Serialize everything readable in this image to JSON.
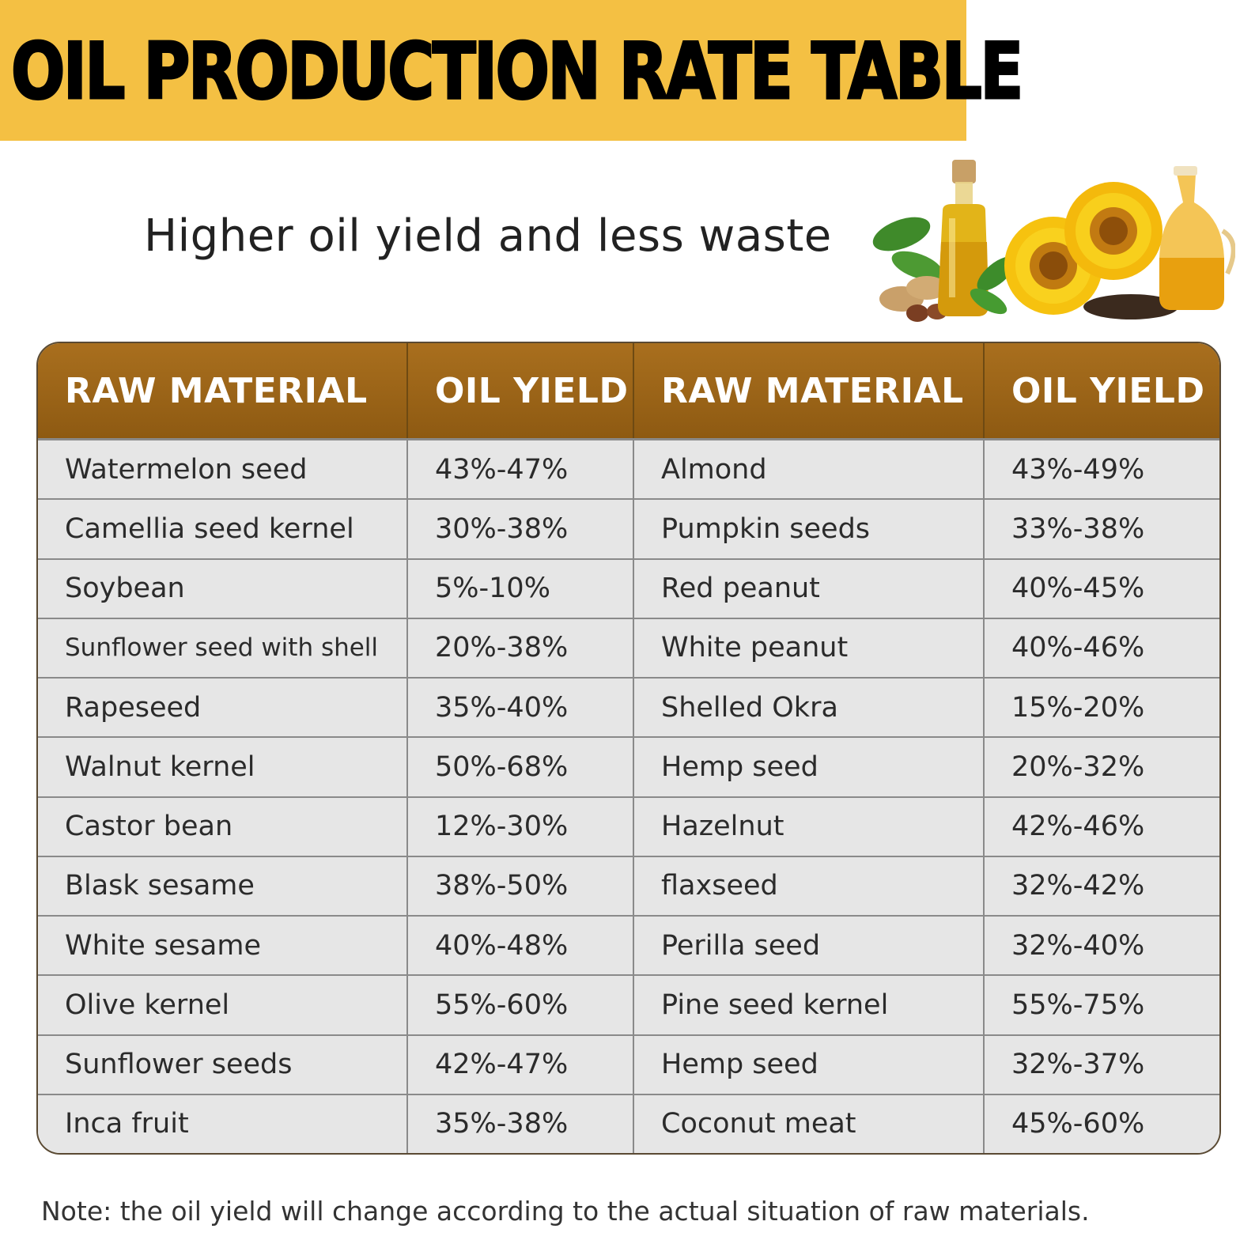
{
  "header": {
    "title": "OIL PRODUCTION RATE TABLE"
  },
  "subtitle": "Higher oil yield and less waste",
  "illustration": {
    "icon": "oil-bottles-sunflower-peanut-illustration"
  },
  "table": {
    "headers": [
      "RAW MATERIAL",
      "OIL YIELD",
      "RAW MATERIAL",
      "OIL YIELD"
    ],
    "rows": [
      [
        "Watermelon seed",
        "43%-47%",
        "Almond",
        "43%-49%"
      ],
      [
        "Camellia seed kernel",
        "30%-38%",
        "Pumpkin seeds",
        "33%-38%"
      ],
      [
        "Soybean",
        "5%-10%",
        "Red peanut",
        "40%-45%"
      ],
      [
        "Sunflower seed with shell",
        "20%-38%",
        "White peanut",
        "40%-46%"
      ],
      [
        "Rapeseed",
        "35%-40%",
        "Shelled Okra",
        "15%-20%"
      ],
      [
        "Walnut kernel",
        "50%-68%",
        "Hemp seed",
        "20%-32%"
      ],
      [
        "Castor bean",
        "12%-30%",
        "Hazelnut",
        "42%-46%"
      ],
      [
        "Blask sesame",
        "38%-50%",
        "flaxseed",
        "32%-42%"
      ],
      [
        "White sesame",
        "40%-48%",
        "Perilla seed",
        "32%-40%"
      ],
      [
        "Olive kernel",
        "55%-60%",
        "Pine seed kernel",
        "55%-75%"
      ],
      [
        "Sunflower seeds",
        "42%-47%",
        "Hemp seed",
        "32%-37%"
      ],
      [
        "Inca fruit",
        "35%-38%",
        "Coconut meat",
        "45%-60%"
      ]
    ]
  },
  "note": "Note: the oil yield will change according to the actual situation of raw materials.",
  "colors": {
    "banner": "#f4c043",
    "header_row": "#9c6519",
    "cell_bg": "#e6e6e6"
  }
}
